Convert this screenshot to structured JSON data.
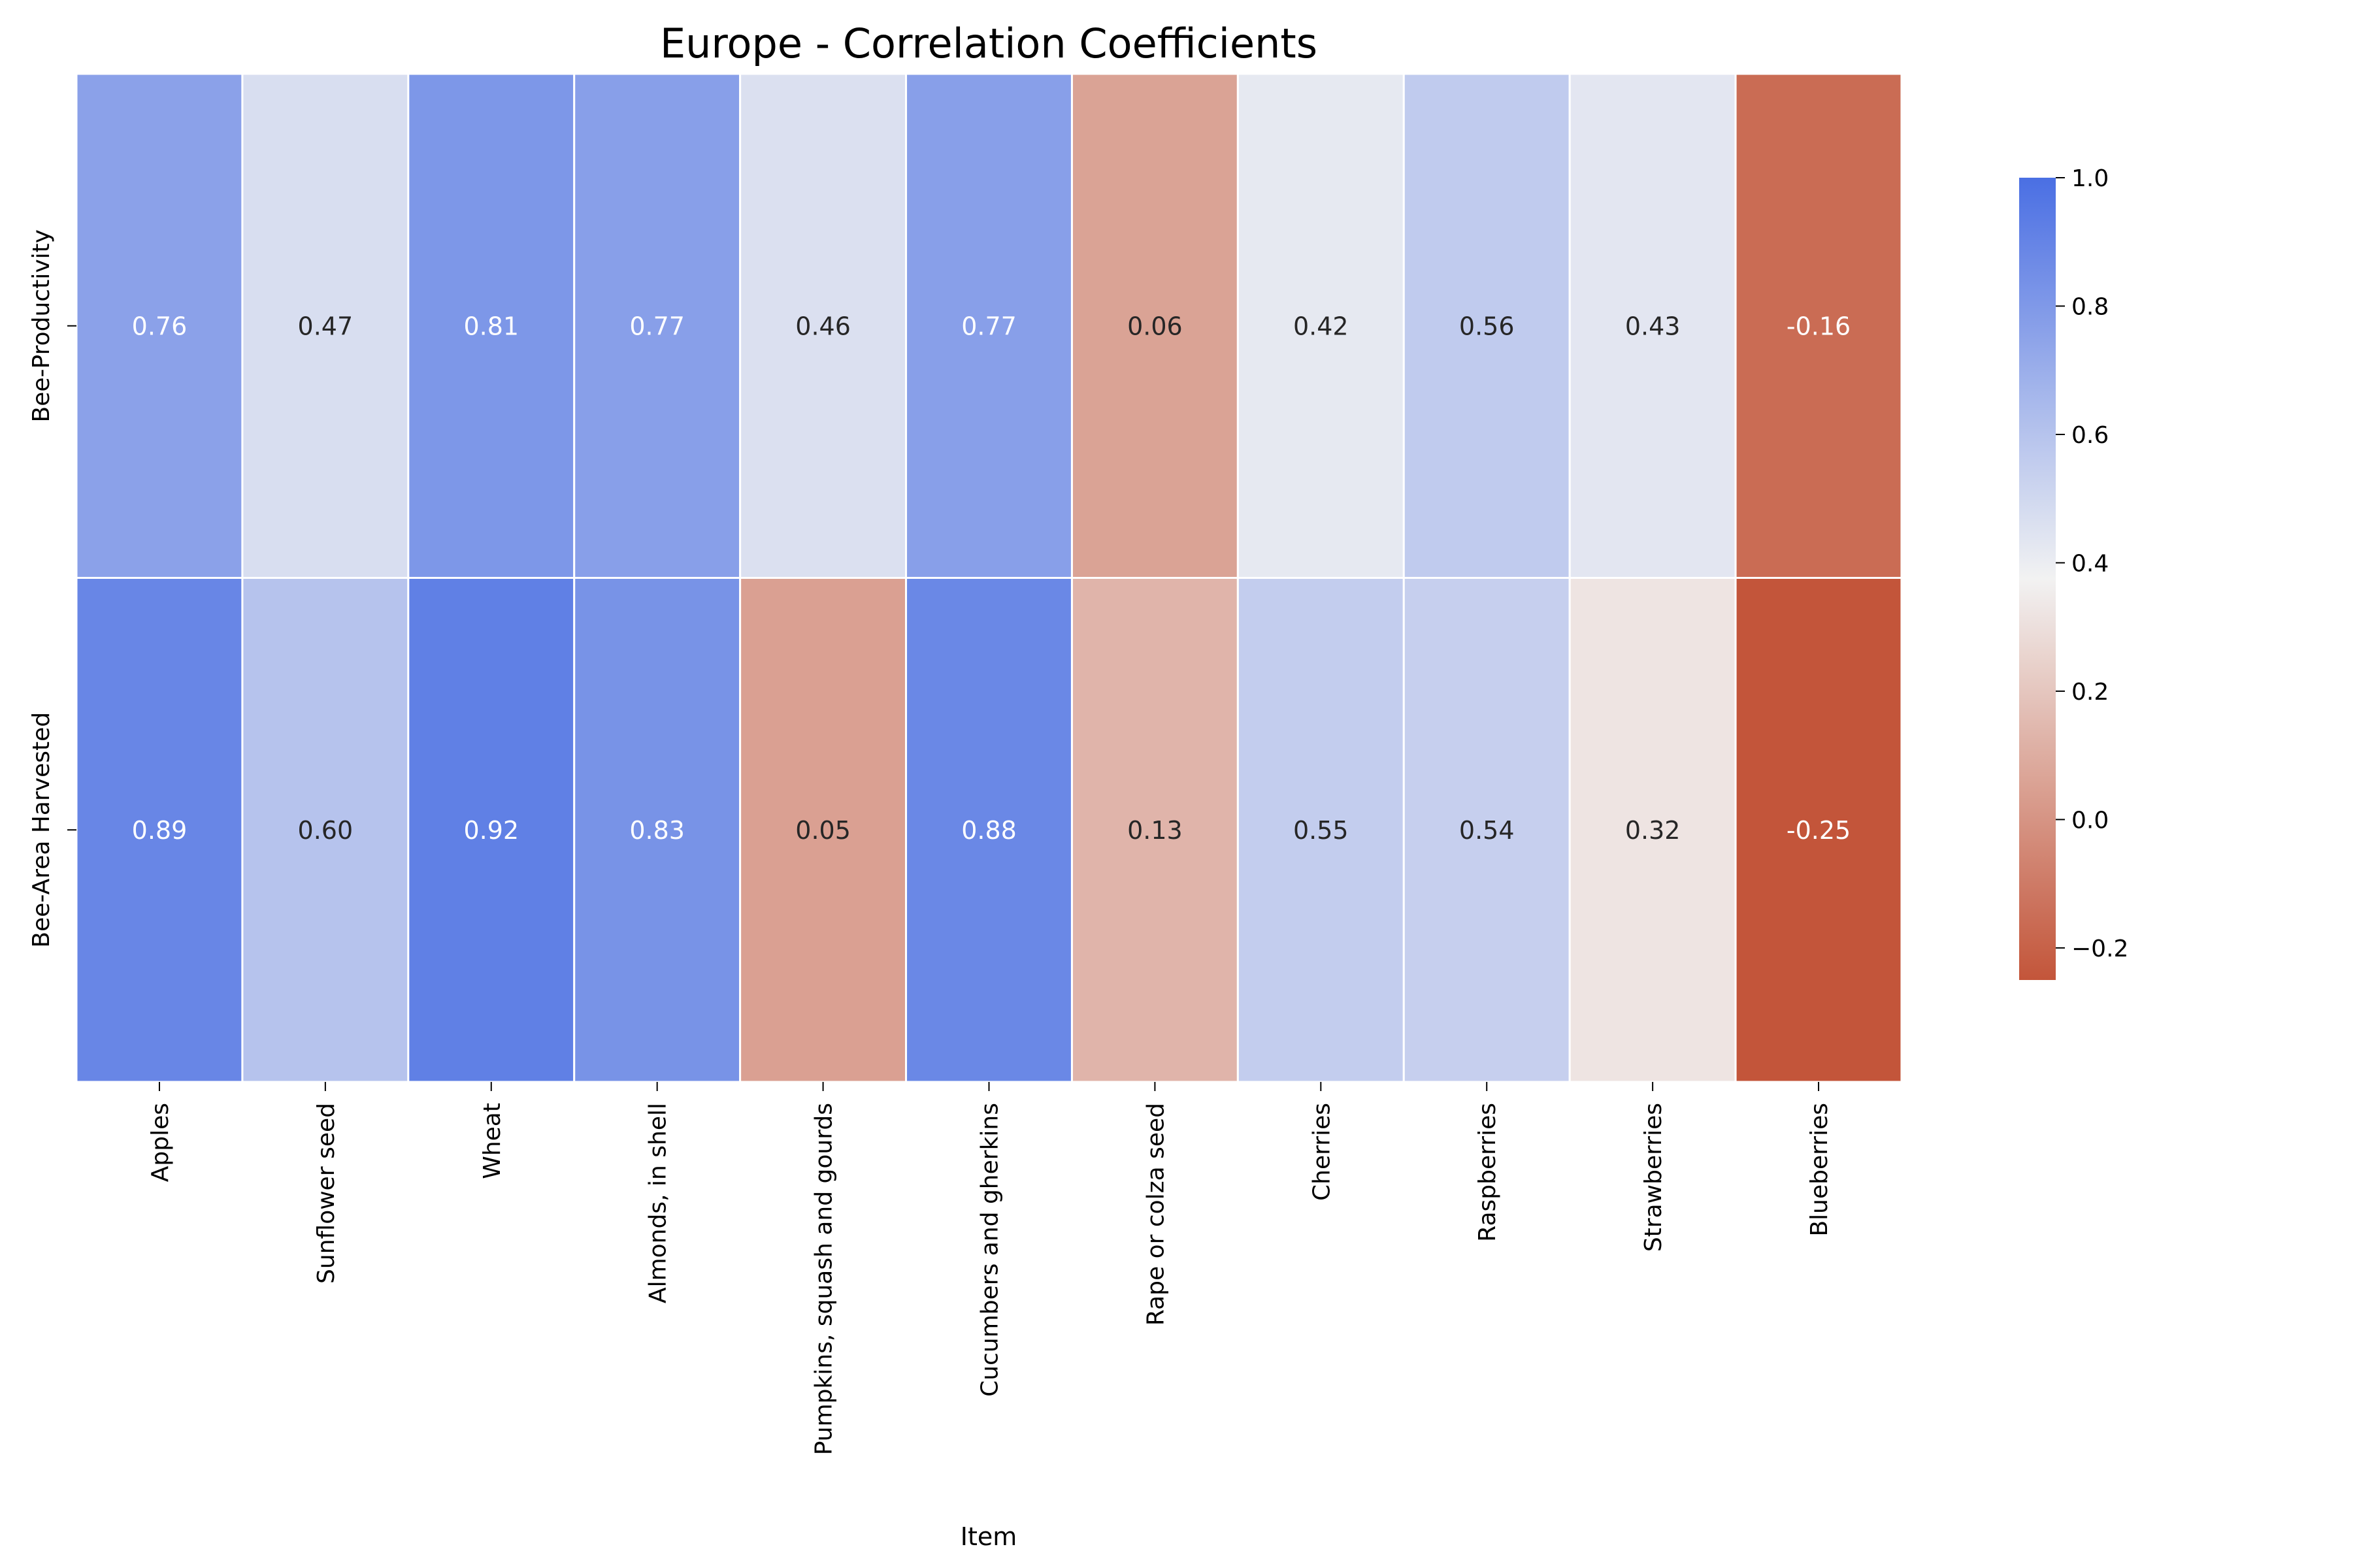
{
  "chart_data": {
    "type": "heatmap",
    "title": "Europe - Correlation Coefficients",
    "xlabel": "Item",
    "ylabel": "",
    "rows": [
      "Bee-Productivity",
      "Bee-Area Harvested"
    ],
    "columns": [
      "Apples",
      "Sunflower seed",
      "Wheat",
      "Almonds, in shell",
      "Pumpkins, squash and gourds",
      "Cucumbers and gherkins",
      "Rape or colza seed",
      "Cherries",
      "Raspberries",
      "Strawberries",
      "Blueberries"
    ],
    "values": [
      [
        0.76,
        0.47,
        0.81,
        0.77,
        0.46,
        0.77,
        0.06,
        0.42,
        0.56,
        0.43,
        -0.16
      ],
      [
        0.89,
        0.6,
        0.92,
        0.83,
        0.05,
        0.88,
        0.13,
        0.55,
        0.54,
        0.32,
        -0.25
      ]
    ],
    "value_format": "0.00",
    "colorbar": {
      "vmin": -0.25,
      "vmax": 1.0,
      "ticks": [
        1.0,
        0.8,
        0.6,
        0.4,
        0.2,
        0.0,
        -0.2
      ],
      "tick_labels": [
        "1.0",
        "0.8",
        "0.6",
        "0.4",
        "0.2",
        "0.0",
        "−0.2"
      ],
      "colormap": "diverging red-to-blue",
      "color_low": "#c3553a",
      "color_mid": "#f2f2f2",
      "color_high": "#4a6fe3"
    },
    "grid": false,
    "cell_border_color": "#ffffff"
  }
}
